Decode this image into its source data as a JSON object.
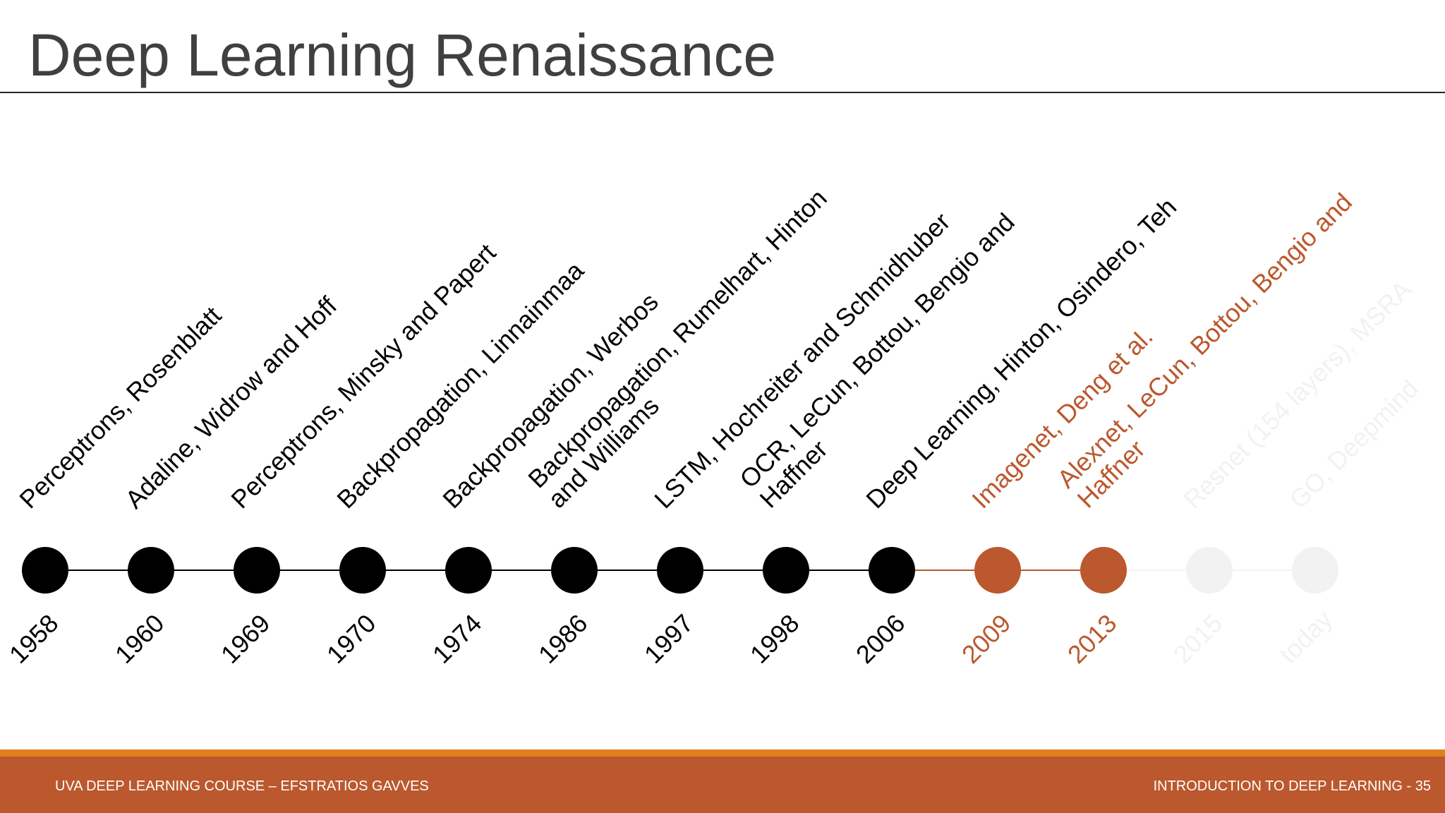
{
  "slide": {
    "title": "Deep Learning Renaissance",
    "footer_left": "UVA DEEP LEARNING COURSE – EFSTRATIOS GAVVES",
    "footer_right": "INTRODUCTION TO DEEP LEARNING - 35"
  },
  "colors": {
    "past": "#000000",
    "highlight": "#bb582e",
    "future": "#f2f2f2",
    "title": "#404040",
    "footer_bar": "#bb582e",
    "footer_stripe": "#e0801f"
  },
  "timeline": {
    "events": [
      {
        "year": "1958",
        "label": "Perceptrons, Rosenblatt",
        "state": "past"
      },
      {
        "year": "1960",
        "label": "Adaline, Widrow and Hoff",
        "state": "past"
      },
      {
        "year": "1969",
        "label": "Perceptrons, Minsky and Papert",
        "state": "past"
      },
      {
        "year": "1970",
        "label": "Backpropagation, Linnainmaa",
        "state": "past"
      },
      {
        "year": "1974",
        "label": "Backpropagation, Werbos",
        "state": "past"
      },
      {
        "year": "1986",
        "label": "Backpropagation, Rumelhart, Hinton\nand Williams",
        "state": "past"
      },
      {
        "year": "1997",
        "label": "LSTM, Hochreiter and Schmidhuber",
        "state": "past"
      },
      {
        "year": "1998",
        "label": "OCR, LeCun, Bottou, Bengio and\nHaffner",
        "state": "past"
      },
      {
        "year": "2006",
        "label": "Deep Learning, Hinton, Osindero, Teh",
        "state": "past"
      },
      {
        "year": "2009",
        "label": "Imagenet, Deng et al.",
        "state": "highlight"
      },
      {
        "year": "2013",
        "label": "Alexnet, LeCun, Bottou, Bengio and\nHaffner",
        "state": "highlight"
      },
      {
        "year": "2015",
        "label": "Resnet (154 layers), MSRA",
        "state": "future"
      },
      {
        "year": "today",
        "label": "GO, Deepmind",
        "state": "future"
      }
    ]
  }
}
